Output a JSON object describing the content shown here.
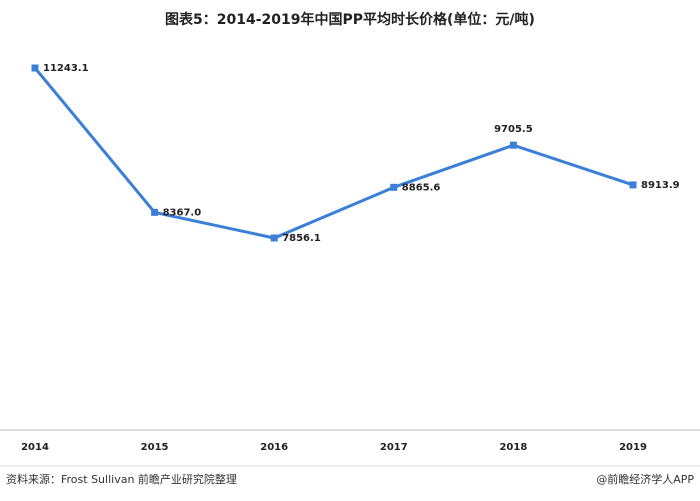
{
  "chart_data": {
    "type": "line",
    "title": "图表5：2014-2019年中国PP平均时长价格(单位：元/吨)",
    "categories": [
      "2014",
      "2015",
      "2016",
      "2017",
      "2018",
      "2019"
    ],
    "series": [
      {
        "name": "PP平均时长价格",
        "color": "#3b7fd9",
        "values": [
          11243.1,
          8367.0,
          7856.1,
          8865.6,
          9705.5,
          8913.9
        ],
        "value_labels": [
          "11243.1",
          "8367.0",
          "7856.1",
          "8865.6",
          "9705.5",
          "8913.9"
        ]
      }
    ]
  },
  "footer": {
    "source": "资料来源：Frost Sullivan  前瞻产业研究院整理",
    "credit": "@前瞻经济学人APP"
  }
}
